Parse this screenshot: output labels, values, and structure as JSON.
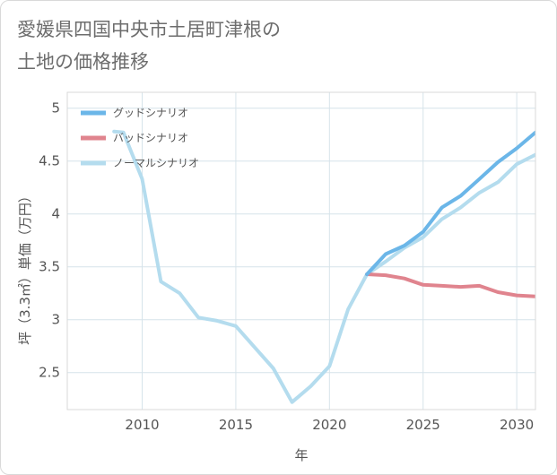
{
  "chart_data": {
    "type": "line",
    "title_lines": [
      "愛媛県四国中央市土居町津根の",
      "土地の価格推移"
    ],
    "xlabel": "年",
    "ylabel": "坪（3.3㎡）単価（万円）",
    "xlim": [
      2006,
      2031
    ],
    "ylim": [
      2.15,
      5.15
    ],
    "x_ticks": [
      2010,
      2015,
      2020,
      2025,
      2030
    ],
    "y_ticks": [
      2.5,
      3,
      3.5,
      4,
      4.5,
      5
    ],
    "x_tick_labels": [
      "2010",
      "2015",
      "2020",
      "2025",
      "2030"
    ],
    "y_tick_labels": [
      "2.5",
      "3",
      "3.5",
      "4",
      "4.5",
      "5"
    ],
    "legend_position": "top-left",
    "series": [
      {
        "name": "グッドシナリオ",
        "color": "#6bb6e8",
        "x": [
          2022,
          2023,
          2024,
          2025,
          2026,
          2027,
          2028,
          2029,
          2030,
          2031
        ],
        "values": [
          3.43,
          3.62,
          3.7,
          3.83,
          4.06,
          4.17,
          4.33,
          4.49,
          4.62,
          4.77
        ]
      },
      {
        "name": "バッドシナリオ",
        "color": "#e0848e",
        "x": [
          2022,
          2023,
          2024,
          2025,
          2026,
          2027,
          2028,
          2029,
          2030,
          2031
        ],
        "values": [
          3.43,
          3.42,
          3.39,
          3.33,
          3.32,
          3.31,
          3.32,
          3.26,
          3.23,
          3.22
        ]
      },
      {
        "name": "ノーマルシナリオ",
        "color": "#b4dcee",
        "x": [
          2008.5,
          2009,
          2010,
          2011,
          2012,
          2013,
          2014,
          2015,
          2016,
          2017,
          2018,
          2019,
          2020,
          2021,
          2022,
          2023,
          2024,
          2025,
          2026,
          2027,
          2028,
          2029,
          2030,
          2031
        ],
        "values": [
          4.78,
          4.77,
          4.33,
          3.36,
          3.25,
          3.02,
          2.99,
          2.94,
          2.74,
          2.54,
          2.22,
          2.37,
          2.56,
          3.1,
          3.43,
          3.55,
          3.68,
          3.78,
          3.95,
          4.06,
          4.2,
          4.3,
          4.47,
          4.56
        ]
      }
    ]
  }
}
